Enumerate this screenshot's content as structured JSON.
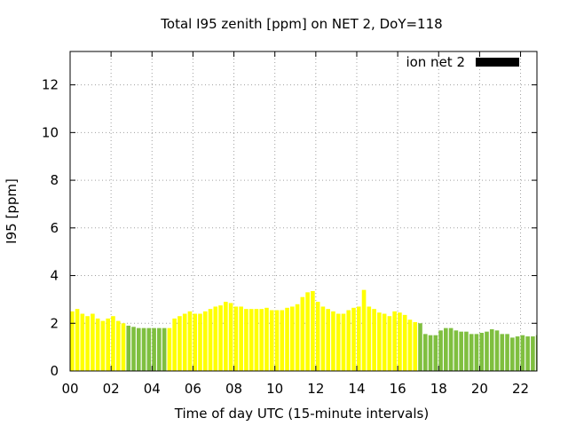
{
  "chart_data": {
    "type": "bar",
    "title": "Total I95 zenith [ppm] on NET 2, DoY=118",
    "xlabel": "Time of day UTC (15-minute intervals)",
    "ylabel": "I95 [ppm]",
    "xlim": [
      0,
      22.8
    ],
    "ylim": [
      0,
      13.4
    ],
    "x_ticks": [
      0,
      2,
      4,
      6,
      8,
      10,
      12,
      14,
      16,
      18,
      20,
      22
    ],
    "x_tick_labels": [
      "00",
      "02",
      "04",
      "06",
      "08",
      "10",
      "12",
      "14",
      "16",
      "18",
      "20",
      "22"
    ],
    "y_ticks": [
      0,
      2,
      4,
      6,
      8,
      10,
      12
    ],
    "y_tick_labels": [
      "0",
      "2",
      "4",
      "6",
      "8",
      "10",
      "12"
    ],
    "grid": true,
    "legend_position": "top-right",
    "legend": [
      {
        "label": "ion net 2",
        "color": "#000000"
      }
    ],
    "interval_hours": 0.25,
    "bar_width_hours": 0.2,
    "colors": {
      "high": "#ffff00",
      "low": "#7fbf3f"
    },
    "values": [
      2.5,
      2.6,
      2.4,
      2.3,
      2.4,
      2.2,
      2.1,
      2.2,
      2.3,
      2.1,
      2.0,
      1.9,
      1.85,
      1.8,
      1.8,
      1.8,
      1.8,
      1.8,
      1.8,
      1.8,
      2.2,
      2.3,
      2.4,
      2.5,
      2.4,
      2.4,
      2.5,
      2.6,
      2.7,
      2.75,
      2.9,
      2.85,
      2.7,
      2.7,
      2.6,
      2.6,
      2.6,
      2.6,
      2.65,
      2.55,
      2.55,
      2.55,
      2.65,
      2.7,
      2.8,
      3.1,
      3.3,
      3.35,
      2.9,
      2.7,
      2.6,
      2.5,
      2.4,
      2.4,
      2.55,
      2.65,
      2.7,
      3.4,
      2.7,
      2.6,
      2.45,
      2.4,
      2.3,
      2.5,
      2.45,
      2.35,
      2.15,
      2.05,
      2.0,
      1.55,
      1.5,
      1.5,
      1.7,
      1.8,
      1.8,
      1.7,
      1.65,
      1.65,
      1.55,
      1.55,
      1.6,
      1.65,
      1.75,
      1.7,
      1.55,
      1.55,
      1.4,
      1.45,
      1.5,
      1.45,
      1.45,
      1.5
    ],
    "bar_colors": [
      "high",
      "high",
      "high",
      "high",
      "high",
      "high",
      "high",
      "high",
      "high",
      "high",
      "high",
      "low",
      "low",
      "low",
      "low",
      "low",
      "low",
      "low",
      "low",
      "high",
      "high",
      "high",
      "high",
      "high",
      "high",
      "high",
      "high",
      "high",
      "high",
      "high",
      "high",
      "high",
      "high",
      "high",
      "high",
      "high",
      "high",
      "high",
      "high",
      "high",
      "high",
      "high",
      "high",
      "high",
      "high",
      "high",
      "high",
      "high",
      "high",
      "high",
      "high",
      "high",
      "high",
      "high",
      "high",
      "high",
      "high",
      "high",
      "high",
      "high",
      "high",
      "high",
      "high",
      "high",
      "high",
      "high",
      "high",
      "high",
      "low",
      "low",
      "low",
      "low",
      "low",
      "low",
      "low",
      "low",
      "low",
      "low",
      "low",
      "low",
      "low",
      "low",
      "low",
      "low",
      "low",
      "low",
      "low",
      "low",
      "low",
      "low",
      "low",
      "low"
    ]
  }
}
